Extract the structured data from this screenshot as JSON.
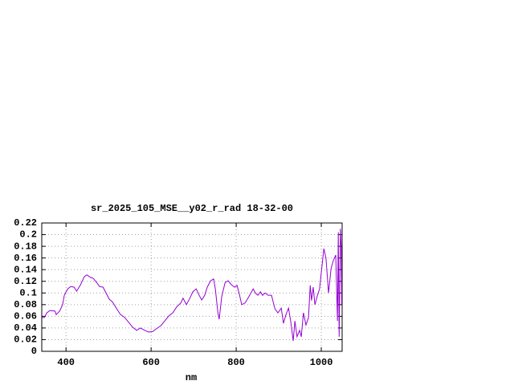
{
  "chart_data": {
    "type": "line",
    "title": "sr_2025_105_MSE__y02_r_rad 18-32-00",
    "x_label": "nm",
    "series": [
      {
        "color": "#9400d3",
        "x": [
          343,
          349,
          355,
          362,
          374,
          377,
          385,
          392,
          396,
          404,
          411,
          419,
          425,
          434,
          443,
          449,
          457,
          464,
          472,
          479,
          487,
          494,
          502,
          509,
          519,
          528,
          538,
          547,
          557,
          566,
          575,
          585,
          594,
          604,
          613,
          623,
          632,
          642,
          651,
          660,
          670,
          675,
          683,
          691,
          698,
          706,
          713,
          719,
          726,
          732,
          740,
          747,
          751,
          757,
          760,
          766,
          774,
          781,
          789,
          796,
          802,
          808,
          813,
          821,
          830,
          840,
          845,
          851,
          857,
          862,
          868,
          875,
          883,
          891,
          898,
          906,
          911,
          917,
          923,
          928,
          934,
          938,
          943,
          949,
          953,
          958,
          964,
          970,
          974,
          977,
          981,
          985,
          991,
          996,
          1000,
          1006,
          1011,
          1017,
          1023,
          1028,
          1034,
          1038,
          1040,
          1042,
          1045,
          1047,
          1048
        ],
        "values": [
          0.058,
          0.058,
          0.066,
          0.07,
          0.069,
          0.063,
          0.069,
          0.08,
          0.096,
          0.107,
          0.111,
          0.11,
          0.103,
          0.114,
          0.128,
          0.131,
          0.127,
          0.125,
          0.118,
          0.111,
          0.11,
          0.1,
          0.089,
          0.085,
          0.073,
          0.063,
          0.058,
          0.05,
          0.041,
          0.036,
          0.04,
          0.036,
          0.033,
          0.034,
          0.039,
          0.044,
          0.052,
          0.061,
          0.066,
          0.076,
          0.083,
          0.091,
          0.08,
          0.091,
          0.102,
          0.107,
          0.096,
          0.088,
          0.096,
          0.11,
          0.121,
          0.124,
          0.107,
          0.066,
          0.055,
          0.094,
          0.118,
          0.121,
          0.114,
          0.11,
          0.113,
          0.096,
          0.08,
          0.083,
          0.094,
          0.107,
          0.1,
          0.096,
          0.102,
          0.096,
          0.1,
          0.096,
          0.096,
          0.073,
          0.066,
          0.074,
          0.048,
          0.063,
          0.074,
          0.052,
          0.018,
          0.052,
          0.025,
          0.036,
          0.025,
          0.066,
          0.045,
          0.058,
          0.113,
          0.087,
          0.11,
          0.08,
          0.096,
          0.107,
          0.135,
          0.176,
          0.16,
          0.1,
          0.142,
          0.155,
          0.165,
          0.052,
          0.204,
          0.025,
          0.21,
          0.176,
          0.08
        ]
      }
    ],
    "xlim": [
      343,
      1049
    ],
    "xticks": [
      400,
      600,
      800,
      1000
    ],
    "ylim": [
      0,
      0.22
    ],
    "yticks": [
      0,
      0.02,
      0.04,
      0.06,
      0.08,
      0.1,
      0.12,
      0.14,
      0.16,
      0.18,
      0.2,
      0.22
    ],
    "grid": true
  }
}
